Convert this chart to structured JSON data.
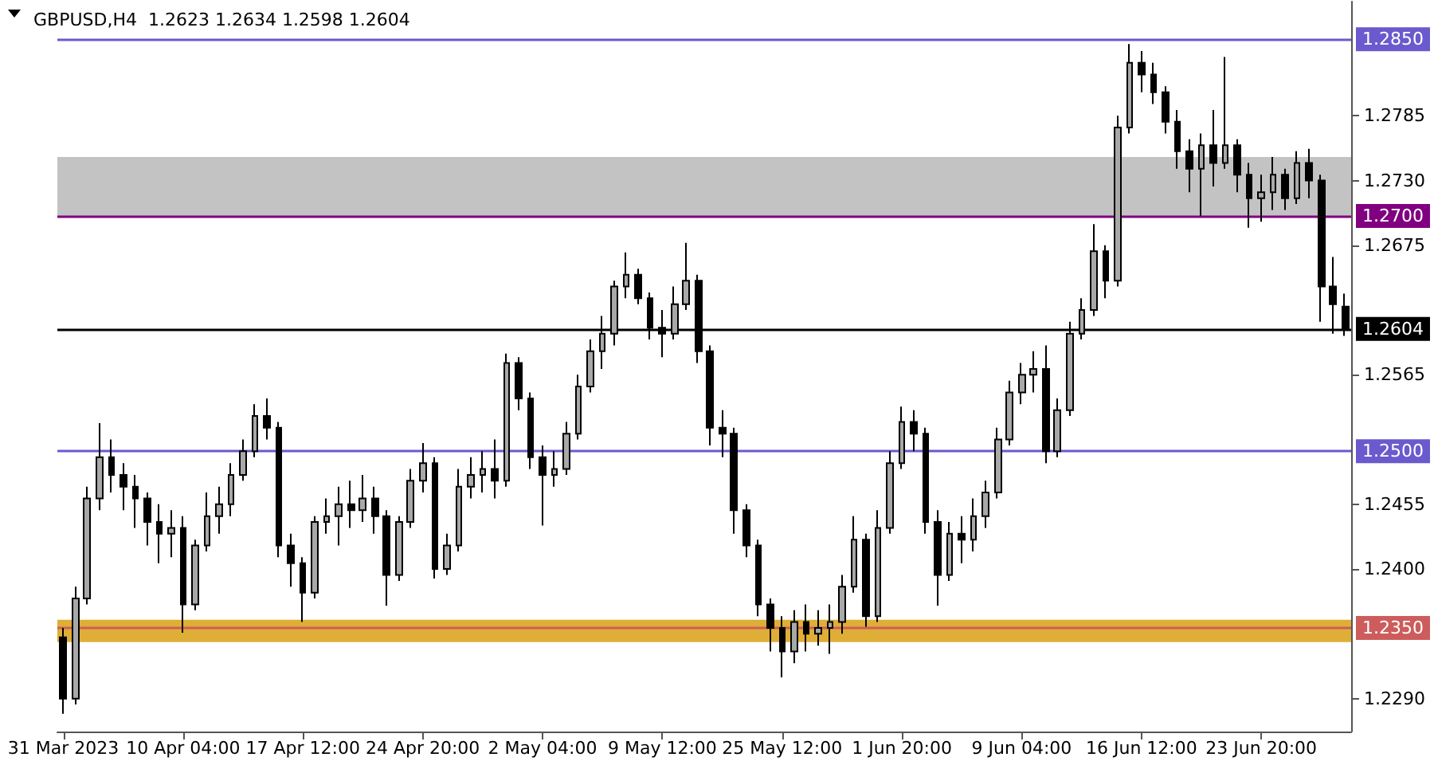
{
  "chart_data": {
    "type": "candlestick",
    "title": "GBPUSD,H4  1.2623 1.2634 1.2598 1.2604",
    "categories": [
      "31 Mar 2023",
      null,
      null,
      null,
      null,
      null,
      null,
      null,
      null,
      null,
      "10 Apr 04:00",
      null,
      null,
      null,
      null,
      null,
      null,
      null,
      null,
      null,
      "17 Apr 12:00",
      null,
      null,
      null,
      null,
      null,
      null,
      null,
      null,
      null,
      "24 Apr 20:00",
      null,
      null,
      null,
      null,
      null,
      null,
      null,
      null,
      null,
      "2 May 04:00",
      null,
      null,
      null,
      null,
      null,
      null,
      null,
      null,
      null,
      "9 May 12:00",
      null,
      null,
      null,
      null,
      null,
      null,
      null,
      null,
      null,
      "25 May 12:00",
      null,
      null,
      null,
      null,
      null,
      null,
      null,
      null,
      null,
      "1 Jun 20:00",
      null,
      null,
      null,
      null,
      null,
      null,
      null,
      null,
      null,
      "9 Jun 04:00",
      null,
      null,
      null,
      null,
      null,
      null,
      null,
      null,
      null,
      "16 Jun 12:00",
      null,
      null,
      null,
      null,
      null,
      null,
      null,
      null,
      null,
      "23 Jun 20:00",
      null,
      null,
      null,
      null,
      null,
      null,
      null
    ],
    "color": "#000000",
    "ohlc": [
      [
        1.2342,
        1.235,
        1.2277,
        1.229
      ],
      [
        1.229,
        1.2385,
        1.2285,
        1.2375
      ],
      [
        1.2375,
        1.247,
        1.237,
        1.246
      ],
      [
        1.246,
        1.2524,
        1.245,
        1.2495
      ],
      [
        1.2495,
        1.251,
        1.2465,
        1.248
      ],
      [
        1.248,
        1.249,
        1.245,
        1.247
      ],
      [
        1.247,
        1.248,
        1.2435,
        1.246
      ],
      [
        1.246,
        1.2465,
        1.242,
        1.244
      ],
      [
        1.244,
        1.2455,
        1.2405,
        1.243
      ],
      [
        1.243,
        1.245,
        1.241,
        1.2435
      ],
      [
        1.2435,
        1.2445,
        1.2346,
        1.237
      ],
      [
        1.237,
        1.2425,
        1.2365,
        1.242
      ],
      [
        1.242,
        1.2465,
        1.2415,
        1.2445
      ],
      [
        1.2445,
        1.247,
        1.243,
        1.2455
      ],
      [
        1.2455,
        1.249,
        1.2445,
        1.248
      ],
      [
        1.248,
        1.251,
        1.2475,
        1.25
      ],
      [
        1.25,
        1.254,
        1.2495,
        1.253
      ],
      [
        1.253,
        1.2545,
        1.251,
        1.252
      ],
      [
        1.252,
        1.2525,
        1.241,
        1.242
      ],
      [
        1.242,
        1.243,
        1.2385,
        1.2405
      ],
      [
        1.2405,
        1.241,
        1.2355,
        1.238
      ],
      [
        1.238,
        1.2445,
        1.2375,
        1.244
      ],
      [
        1.244,
        1.246,
        1.243,
        1.2445
      ],
      [
        1.2445,
        1.247,
        1.242,
        1.2455
      ],
      [
        1.2455,
        1.2475,
        1.2435,
        1.245
      ],
      [
        1.245,
        1.248,
        1.244,
        1.246
      ],
      [
        1.246,
        1.247,
        1.243,
        1.2445
      ],
      [
        1.2445,
        1.245,
        1.2369,
        1.2395
      ],
      [
        1.2395,
        1.2445,
        1.239,
        1.244
      ],
      [
        1.244,
        1.2485,
        1.2435,
        1.2475
      ],
      [
        1.2475,
        1.2507,
        1.2465,
        1.249
      ],
      [
        1.249,
        1.2495,
        1.2392,
        1.24
      ],
      [
        1.24,
        1.243,
        1.2395,
        1.242
      ],
      [
        1.242,
        1.2485,
        1.2415,
        1.247
      ],
      [
        1.247,
        1.2495,
        1.246,
        1.248
      ],
      [
        1.248,
        1.25,
        1.2465,
        1.2485
      ],
      [
        1.2485,
        1.251,
        1.246,
        1.2475
      ],
      [
        1.2475,
        1.2583,
        1.247,
        1.2575
      ],
      [
        1.2575,
        1.258,
        1.2535,
        1.2545
      ],
      [
        1.2545,
        1.255,
        1.2485,
        1.2495
      ],
      [
        1.2495,
        1.2505,
        1.2437,
        1.248
      ],
      [
        1.248,
        1.25,
        1.247,
        1.2485
      ],
      [
        1.2485,
        1.2525,
        1.248,
        1.2515
      ],
      [
        1.2515,
        1.2565,
        1.251,
        1.2555
      ],
      [
        1.2555,
        1.2595,
        1.255,
        1.2585
      ],
      [
        1.2585,
        1.2615,
        1.257,
        1.26
      ],
      [
        1.26,
        1.2645,
        1.259,
        1.264
      ],
      [
        1.264,
        1.2669,
        1.263,
        1.265
      ],
      [
        1.265,
        1.2655,
        1.2625,
        1.263
      ],
      [
        1.263,
        1.2635,
        1.2595,
        1.2605
      ],
      [
        1.2605,
        1.262,
        1.258,
        1.26
      ],
      [
        1.26,
        1.264,
        1.2595,
        1.2625
      ],
      [
        1.2625,
        1.2677,
        1.262,
        1.2645
      ],
      [
        1.2645,
        1.265,
        1.2575,
        1.2585
      ],
      [
        1.2585,
        1.259,
        1.2505,
        1.252
      ],
      [
        1.252,
        1.2535,
        1.2495,
        1.2515
      ],
      [
        1.2515,
        1.252,
        1.243,
        1.245
      ],
      [
        1.245,
        1.2455,
        1.241,
        1.242
      ],
      [
        1.242,
        1.2425,
        1.236,
        1.237
      ],
      [
        1.237,
        1.2375,
        1.233,
        1.235
      ],
      [
        1.235,
        1.236,
        1.2308,
        1.233
      ],
      [
        1.233,
        1.2365,
        1.232,
        1.2355
      ],
      [
        1.2355,
        1.237,
        1.233,
        1.2345
      ],
      [
        1.2345,
        1.2365,
        1.2335,
        1.235
      ],
      [
        1.235,
        1.237,
        1.2328,
        1.2355
      ],
      [
        1.2355,
        1.2395,
        1.2345,
        1.2385
      ],
      [
        1.2385,
        1.2445,
        1.238,
        1.2425
      ],
      [
        1.2425,
        1.243,
        1.2351,
        1.236
      ],
      [
        1.236,
        1.245,
        1.2355,
        1.2435
      ],
      [
        1.2435,
        1.25,
        1.243,
        1.249
      ],
      [
        1.249,
        1.2538,
        1.2485,
        1.2525
      ],
      [
        1.2525,
        1.2535,
        1.25,
        1.2515
      ],
      [
        1.2515,
        1.252,
        1.243,
        1.244
      ],
      [
        1.244,
        1.245,
        1.2369,
        1.2395
      ],
      [
        1.2395,
        1.244,
        1.239,
        1.243
      ],
      [
        1.243,
        1.2445,
        1.2405,
        1.2425
      ],
      [
        1.2425,
        1.246,
        1.2415,
        1.2445
      ],
      [
        1.2445,
        1.2475,
        1.2435,
        1.2465
      ],
      [
        1.2465,
        1.252,
        1.246,
        1.251
      ],
      [
        1.251,
        1.256,
        1.2505,
        1.255
      ],
      [
        1.255,
        1.2575,
        1.254,
        1.2565
      ],
      [
        1.2565,
        1.2585,
        1.255,
        1.257
      ],
      [
        1.257,
        1.259,
        1.249,
        1.25
      ],
      [
        1.25,
        1.2545,
        1.2495,
        1.2535
      ],
      [
        1.2535,
        1.261,
        1.253,
        1.26
      ],
      [
        1.26,
        1.263,
        1.2595,
        1.262
      ],
      [
        1.262,
        1.2693,
        1.2615,
        1.267
      ],
      [
        1.267,
        1.2675,
        1.263,
        1.2645
      ],
      [
        1.2645,
        1.2785,
        1.264,
        1.2775
      ],
      [
        1.2775,
        1.2846,
        1.277,
        1.283
      ],
      [
        1.283,
        1.284,
        1.2805,
        1.282
      ],
      [
        1.282,
        1.283,
        1.2795,
        1.2805
      ],
      [
        1.2805,
        1.281,
        1.277,
        1.278
      ],
      [
        1.278,
        1.279,
        1.274,
        1.2755
      ],
      [
        1.2755,
        1.2765,
        1.272,
        1.274
      ],
      [
        1.274,
        1.277,
        1.27,
        1.276
      ],
      [
        1.276,
        1.279,
        1.2725,
        1.2745
      ],
      [
        1.2745,
        1.2835,
        1.274,
        1.276
      ],
      [
        1.276,
        1.2765,
        1.272,
        1.2735
      ],
      [
        1.2735,
        1.2745,
        1.269,
        1.2715
      ],
      [
        1.2715,
        1.2735,
        1.2695,
        1.272
      ],
      [
        1.272,
        1.275,
        1.2705,
        1.2735
      ],
      [
        1.2735,
        1.274,
        1.2705,
        1.2715
      ],
      [
        1.2715,
        1.2755,
        1.271,
        1.2745
      ],
      [
        1.2745,
        1.2757,
        1.2715,
        1.273
      ],
      [
        1.273,
        1.2735,
        1.261,
        1.264
      ],
      [
        1.264,
        1.2665,
        1.26,
        1.2625
      ],
      [
        1.2623,
        1.2634,
        1.2598,
        1.2604
      ]
    ],
    "ylim": [
      1.2262,
      1.2882
    ],
    "yticks": [
      {
        "value": 1.229,
        "label": "1.2290"
      },
      {
        "value": 1.24,
        "label": "1.2400"
      },
      1.2455,
      1.2565,
      1.2675,
      {
        "value": 1.273,
        "label": "1.2730"
      },
      1.2785
    ],
    "ref_lines": [
      {
        "axis": "y",
        "value": 1.285,
        "label": "1.2850",
        "color": "#6a5acd"
      },
      {
        "axis": "y",
        "value": 1.27,
        "label": "1.2700",
        "color": "#800080"
      },
      {
        "axis": "y",
        "value": 1.2604,
        "label": "1.2604",
        "color": "#000000"
      },
      {
        "axis": "y",
        "value": 1.25,
        "label": "1.2500",
        "color": "#6a5acd"
      },
      {
        "axis": "y",
        "value": 1.235,
        "label": "1.2350",
        "color": "#cd5c5c"
      }
    ],
    "bands": [
      {
        "axis": "y",
        "from": 1.2338,
        "to": 1.2357,
        "color": "#daa520"
      },
      {
        "axis": "y",
        "from": 1.27,
        "to": 1.275,
        "color": "#bdbdbd"
      }
    ],
    "grid": false
  }
}
